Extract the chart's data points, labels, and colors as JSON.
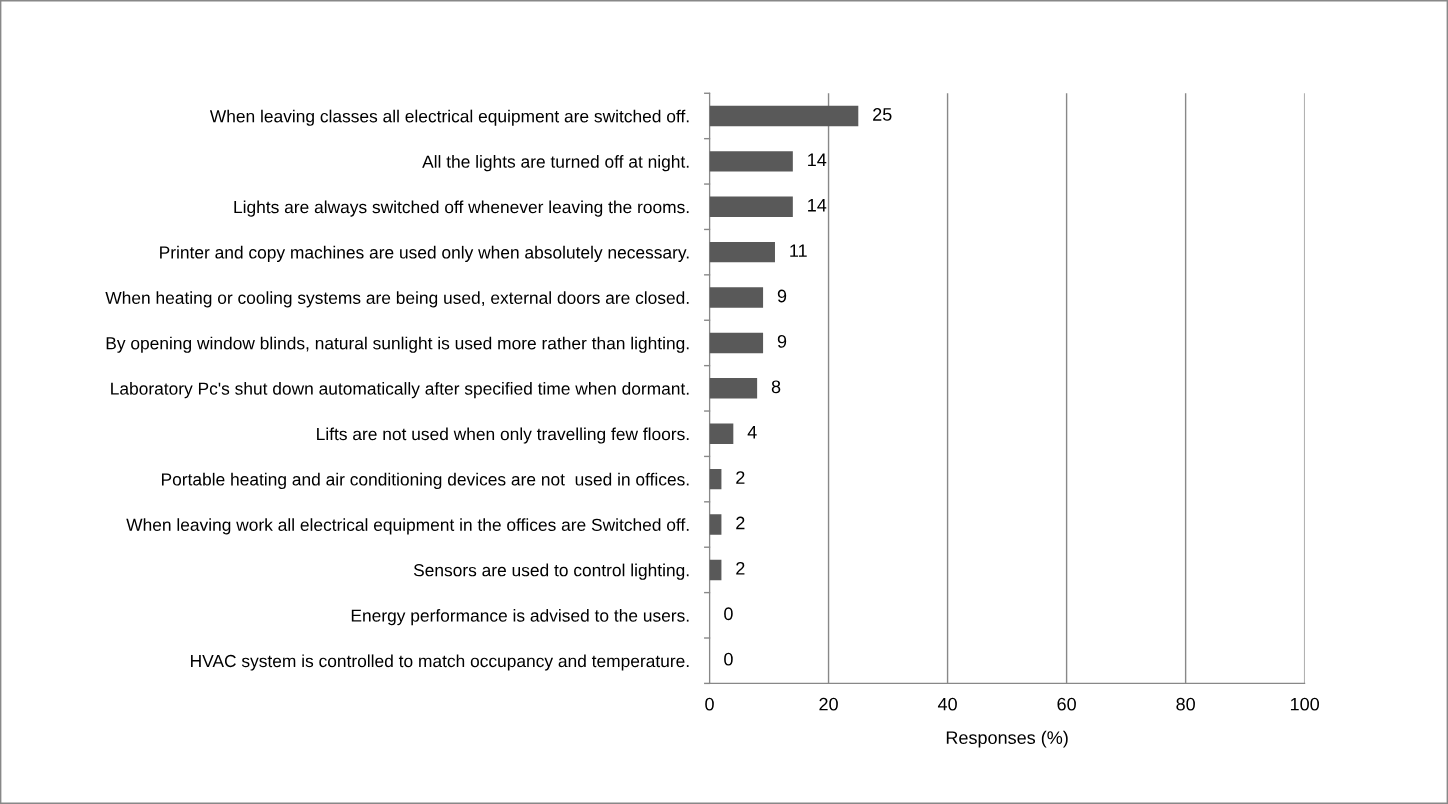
{
  "chart_data": {
    "type": "bar",
    "orientation": "horizontal",
    "xlabel": "Responses (%)",
    "categories": [
      "When leaving classes all electrical equipment are switched off.",
      "All the lights are turned off at night.",
      "Lights are always switched off whenever leaving the rooms.",
      "Printer and copy machines are used only when absolutely necessary.",
      "When heating or cooling systems are being used, external doors are closed.",
      "By opening window blinds, natural sunlight is used more rather than lighting.",
      "Laboratory Pc's shut down automatically after specified time when dormant.",
      "Lifts are not used when only travelling few floors.",
      "Portable heating and air conditioning devices are not  used in offices.",
      "When leaving work all electrical equipment in the offices are Switched off.",
      "Sensors are used to control lighting.",
      "Energy performance is advised to the users.",
      "HVAC system is controlled to match occupancy and temperature."
    ],
    "values": [
      25,
      14,
      14,
      11,
      9,
      9,
      8,
      4,
      2,
      2,
      2,
      0,
      0
    ],
    "color": "#595959",
    "xlim": [
      0,
      100
    ],
    "xticks": [
      0,
      20,
      40,
      60,
      80,
      100
    ],
    "grid": "x",
    "data_labels": true
  }
}
